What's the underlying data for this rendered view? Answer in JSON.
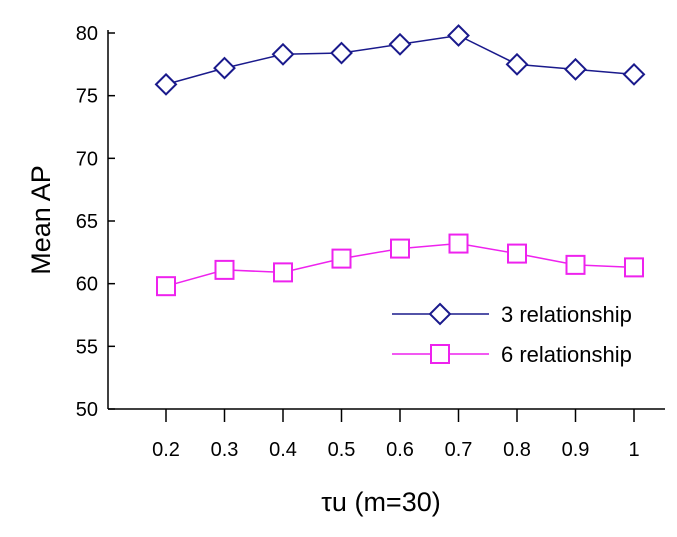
{
  "chart_data": {
    "type": "line",
    "xlabel": "τu (m=30)",
    "ylabel": "Mean AP",
    "categories": [
      "0.2",
      "0.3",
      "0.4",
      "0.5",
      "0.6",
      "0.7",
      "0.8",
      "0.9",
      "1"
    ],
    "yticks": [
      "50",
      "55",
      "60",
      "65",
      "70",
      "75",
      "80"
    ],
    "ylim": [
      50,
      80
    ],
    "grid": false,
    "legend_position": "right",
    "series": [
      {
        "name": "3 relationship",
        "color": "#1a1a8c",
        "marker": "diamond",
        "values": [
          75.9,
          77.2,
          78.3,
          78.4,
          79.1,
          79.8,
          77.5,
          77.1,
          76.7
        ]
      },
      {
        "name": "6 relationship",
        "color": "#ee22ee",
        "marker": "square",
        "values": [
          59.8,
          61.1,
          60.9,
          62.0,
          62.8,
          63.2,
          62.4,
          61.5,
          61.3
        ]
      }
    ]
  }
}
